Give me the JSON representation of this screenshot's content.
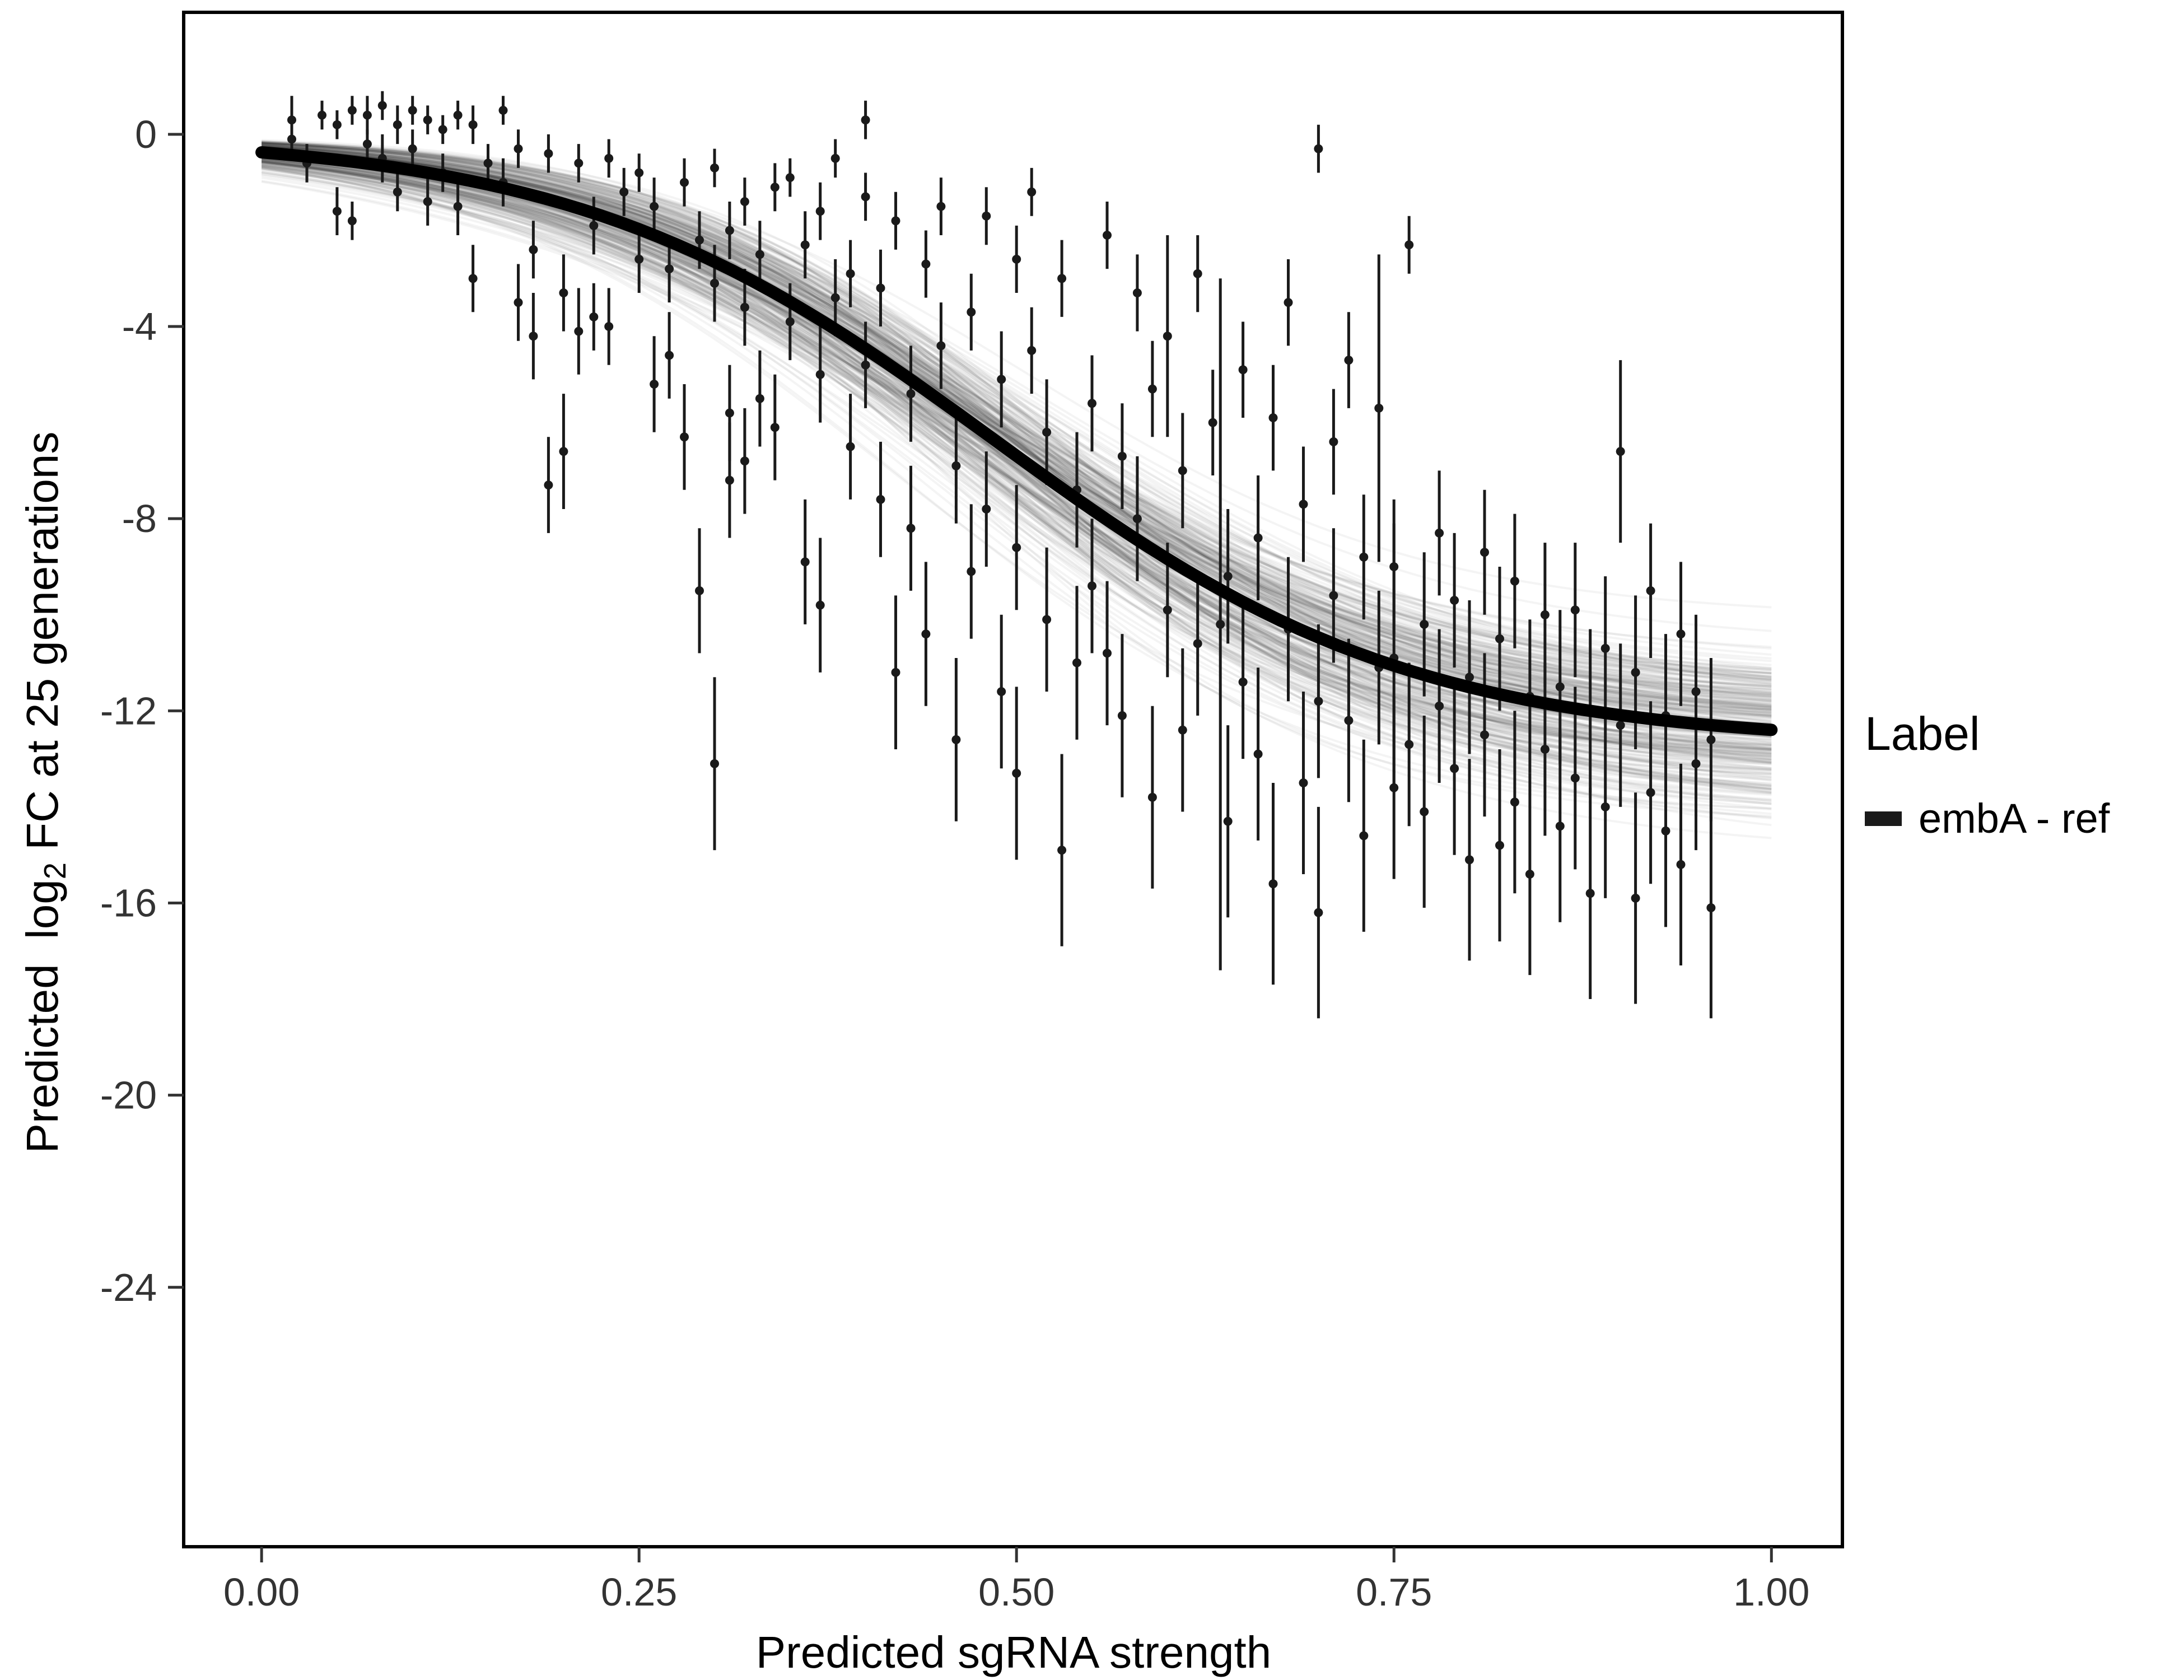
{
  "chart_data": {
    "type": "scatter",
    "title": "",
    "xlabel": "Predicted sgRNA strength",
    "ylabel_parts": [
      "Predicted  log",
      "2",
      " FC at 25 generations"
    ],
    "x_ticks": [
      0,
      0.25,
      0.5,
      0.75,
      1
    ],
    "x_tick_labels": [
      "0.00",
      "0.25",
      "0.50",
      "0.75",
      "1.00"
    ],
    "y_ticks": [
      0,
      -4,
      -8,
      -12,
      -16,
      -20,
      -24
    ],
    "y_tick_labels": [
      "0",
      "-4",
      "-8",
      "-12",
      "-16",
      "-20",
      "-24"
    ],
    "xlim": [
      -0.0516,
      1.047
    ],
    "ylim": [
      -29.4,
      2.54
    ],
    "grid": false,
    "legend": {
      "title": "Label",
      "position": "right",
      "entries": [
        {
          "label": "embA - ref",
          "color": "#1a1a1a"
        }
      ]
    },
    "fit_curve": {
      "model": "logistic",
      "L": 12.7,
      "k": 7.2,
      "x0": 0.485,
      "color": "#000000",
      "x_range": [
        0,
        1
      ]
    },
    "uncertainty_band": {
      "n_draws": 300,
      "sd_L": 0.8,
      "sd_k": 0.8,
      "sd_x0": 0.025,
      "color": "rgba(0,0,0,0.045)"
    },
    "point_color": "#1a1a1a",
    "points": [
      [
        0.02,
        0.3,
        0.5
      ],
      [
        0.02,
        -0.1,
        0.3
      ],
      [
        0.03,
        -0.6,
        0.4
      ],
      [
        0.04,
        0.4,
        0.3
      ],
      [
        0.05,
        -1.6,
        0.5
      ],
      [
        0.05,
        0.2,
        0.3
      ],
      [
        0.06,
        -1.8,
        0.4
      ],
      [
        0.06,
        0.5,
        0.3
      ],
      [
        0.07,
        0.4,
        0.4
      ],
      [
        0.07,
        -0.2,
        0.3
      ],
      [
        0.08,
        0.6,
        0.3
      ],
      [
        0.08,
        -0.5,
        0.5
      ],
      [
        0.09,
        0.2,
        0.4
      ],
      [
        0.09,
        -1.2,
        0.4
      ],
      [
        0.1,
        0.5,
        0.3
      ],
      [
        0.1,
        -0.3,
        0.4
      ],
      [
        0.11,
        -1.4,
        0.5
      ],
      [
        0.11,
        0.3,
        0.3
      ],
      [
        0.12,
        -0.8,
        0.4
      ],
      [
        0.12,
        0.1,
        0.3
      ],
      [
        0.13,
        -1.5,
        0.6
      ],
      [
        0.13,
        0.4,
        0.3
      ],
      [
        0.14,
        -3.0,
        0.7
      ],
      [
        0.14,
        0.2,
        0.4
      ],
      [
        0.15,
        -0.6,
        0.4
      ],
      [
        0.16,
        0.5,
        0.3
      ],
      [
        0.16,
        -1.0,
        0.5
      ],
      [
        0.17,
        -0.3,
        0.4
      ],
      [
        0.17,
        -3.5,
        0.8
      ],
      [
        0.18,
        -2.4,
        0.6
      ],
      [
        0.18,
        -4.2,
        0.9
      ],
      [
        0.19,
        -7.3,
        1.0
      ],
      [
        0.19,
        -0.4,
        0.4
      ],
      [
        0.2,
        -3.3,
        0.8
      ],
      [
        0.2,
        -6.6,
        1.2
      ],
      [
        0.21,
        -4.1,
        0.9
      ],
      [
        0.21,
        -0.6,
        0.4
      ],
      [
        0.22,
        -3.8,
        0.7
      ],
      [
        0.22,
        -1.9,
        0.6
      ],
      [
        0.23,
        -0.5,
        0.4
      ],
      [
        0.23,
        -4.0,
        0.8
      ],
      [
        0.24,
        -1.2,
        0.5
      ],
      [
        0.25,
        -2.6,
        0.7
      ],
      [
        0.25,
        -0.8,
        0.4
      ],
      [
        0.26,
        -1.5,
        0.6
      ],
      [
        0.26,
        -5.2,
        1.0
      ],
      [
        0.27,
        -2.8,
        0.7
      ],
      [
        0.27,
        -4.6,
        0.9
      ],
      [
        0.28,
        -1.0,
        0.5
      ],
      [
        0.28,
        -6.3,
        1.1
      ],
      [
        0.29,
        -2.2,
        0.6
      ],
      [
        0.29,
        -9.5,
        1.3
      ],
      [
        0.3,
        -13.1,
        1.8
      ],
      [
        0.3,
        -3.1,
        0.8
      ],
      [
        0.3,
        -0.7,
        0.4
      ],
      [
        0.31,
        -5.8,
        1.0
      ],
      [
        0.31,
        -2.0,
        0.6
      ],
      [
        0.31,
        -7.2,
        1.2
      ],
      [
        0.32,
        -1.4,
        0.5
      ],
      [
        0.32,
        -6.8,
        1.1
      ],
      [
        0.32,
        -3.6,
        0.8
      ],
      [
        0.33,
        -2.5,
        0.7
      ],
      [
        0.33,
        -5.5,
        1.0
      ],
      [
        0.34,
        -1.1,
        0.5
      ],
      [
        0.34,
        -6.1,
        1.1
      ],
      [
        0.35,
        -3.9,
        0.8
      ],
      [
        0.35,
        -0.9,
        0.4
      ],
      [
        0.36,
        -2.3,
        0.7
      ],
      [
        0.36,
        -8.9,
        1.3
      ],
      [
        0.37,
        -1.6,
        0.6
      ],
      [
        0.37,
        -5.0,
        1.0
      ],
      [
        0.37,
        -9.8,
        1.4
      ],
      [
        0.38,
        -3.4,
        0.8
      ],
      [
        0.38,
        -0.5,
        0.4
      ],
      [
        0.39,
        -6.5,
        1.1
      ],
      [
        0.39,
        -2.9,
        0.7
      ],
      [
        0.4,
        -4.8,
        0.9
      ],
      [
        0.4,
        -1.3,
        0.5
      ],
      [
        0.4,
        0.3,
        0.4
      ],
      [
        0.41,
        -7.6,
        1.2
      ],
      [
        0.41,
        -3.2,
        0.8
      ],
      [
        0.42,
        -11.2,
        1.6
      ],
      [
        0.42,
        -1.8,
        0.6
      ],
      [
        0.43,
        -5.4,
        1.0
      ],
      [
        0.43,
        -8.2,
        1.3
      ],
      [
        0.44,
        -2.7,
        0.7
      ],
      [
        0.44,
        -10.4,
        1.5
      ],
      [
        0.45,
        -4.4,
        0.9
      ],
      [
        0.45,
        -1.5,
        0.6
      ],
      [
        0.46,
        -6.9,
        1.2
      ],
      [
        0.46,
        -12.6,
        1.7
      ],
      [
        0.47,
        -3.7,
        0.8
      ],
      [
        0.47,
        -9.1,
        1.4
      ],
      [
        0.48,
        -1.7,
        0.6
      ],
      [
        0.48,
        -7.8,
        1.2
      ],
      [
        0.49,
        -5.1,
        1.0
      ],
      [
        0.49,
        -11.6,
        1.6
      ],
      [
        0.5,
        -2.6,
        0.7
      ],
      [
        0.5,
        -8.6,
        1.3
      ],
      [
        0.5,
        -13.3,
        1.8
      ],
      [
        0.51,
        -4.5,
        0.9
      ],
      [
        0.51,
        -1.2,
        0.5
      ],
      [
        0.52,
        -6.2,
        1.1
      ],
      [
        0.52,
        -10.1,
        1.5
      ],
      [
        0.53,
        -14.9,
        2.0
      ],
      [
        0.53,
        -3.0,
        0.8
      ],
      [
        0.54,
        -7.4,
        1.2
      ],
      [
        0.54,
        -11.0,
        1.6
      ],
      [
        0.55,
        -5.6,
        1.0
      ],
      [
        0.55,
        -9.4,
        1.4
      ],
      [
        0.56,
        -2.1,
        0.7
      ],
      [
        0.56,
        -10.8,
        1.5
      ],
      [
        0.57,
        -6.7,
        1.1
      ],
      [
        0.57,
        -12.1,
        1.7
      ],
      [
        0.58,
        -3.3,
        0.8
      ],
      [
        0.58,
        -8.0,
        1.3
      ],
      [
        0.59,
        -13.8,
        1.9
      ],
      [
        0.59,
        -5.3,
        1.0
      ],
      [
        0.6,
        -9.9,
        1.4
      ],
      [
        0.6,
        -4.2,
        2.1
      ],
      [
        0.61,
        -12.4,
        1.7
      ],
      [
        0.61,
        -7.0,
        1.2
      ],
      [
        0.62,
        -10.6,
        1.5
      ],
      [
        0.62,
        -2.9,
        0.8
      ],
      [
        0.635,
        -10.2,
        7.2
      ],
      [
        0.63,
        -6.0,
        1.1
      ],
      [
        0.64,
        -9.2,
        1.4
      ],
      [
        0.64,
        -14.3,
        2.0
      ],
      [
        0.65,
        -4.9,
        1.0
      ],
      [
        0.65,
        -11.4,
        1.6
      ],
      [
        0.66,
        -8.4,
        1.3
      ],
      [
        0.66,
        -12.9,
        1.8
      ],
      [
        0.67,
        -5.9,
        1.1
      ],
      [
        0.67,
        -15.6,
        2.1
      ],
      [
        0.68,
        -10.3,
        1.5
      ],
      [
        0.68,
        -3.5,
        0.9
      ],
      [
        0.69,
        -13.5,
        1.9
      ],
      [
        0.69,
        -7.7,
        1.2
      ],
      [
        0.7,
        -0.3,
        0.5
      ],
      [
        0.7,
        -11.8,
        1.6
      ],
      [
        0.7,
        -16.2,
        2.2
      ],
      [
        0.71,
        -6.4,
        1.1
      ],
      [
        0.71,
        -9.6,
        1.4
      ],
      [
        0.72,
        -12.2,
        1.7
      ],
      [
        0.72,
        -4.7,
        1.0
      ],
      [
        0.73,
        -14.6,
        2.0
      ],
      [
        0.73,
        -8.8,
        1.3
      ],
      [
        0.74,
        -11.1,
        1.6
      ],
      [
        0.74,
        -5.7,
        3.2
      ],
      [
        0.75,
        -13.6,
        1.9
      ],
      [
        0.75,
        -9.0,
        1.4
      ],
      [
        0.75,
        -10.9,
        2.8
      ],
      [
        0.76,
        -2.3,
        0.6
      ],
      [
        0.76,
        -12.7,
        1.7
      ],
      [
        0.77,
        -10.2,
        1.5
      ],
      [
        0.77,
        -14.1,
        2.0
      ],
      [
        0.78,
        -8.3,
        1.3
      ],
      [
        0.78,
        -11.9,
        1.6
      ],
      [
        0.79,
        -13.2,
        1.8
      ],
      [
        0.79,
        -9.7,
        1.4
      ],
      [
        0.8,
        -15.1,
        2.1
      ],
      [
        0.8,
        -11.3,
        1.6
      ],
      [
        0.81,
        -8.7,
        1.3
      ],
      [
        0.81,
        -12.5,
        1.7
      ],
      [
        0.82,
        -14.8,
        2.0
      ],
      [
        0.82,
        -10.5,
        1.5
      ],
      [
        0.83,
        -9.3,
        1.4
      ],
      [
        0.83,
        -13.9,
        1.9
      ],
      [
        0.84,
        -11.7,
        1.6
      ],
      [
        0.84,
        -15.4,
        2.1
      ],
      [
        0.85,
        -10.0,
        1.5
      ],
      [
        0.85,
        -12.8,
        1.8
      ],
      [
        0.86,
        -14.4,
        2.0
      ],
      [
        0.86,
        -11.5,
        1.6
      ],
      [
        0.87,
        -13.4,
        1.9
      ],
      [
        0.87,
        -9.9,
        1.4
      ],
      [
        0.88,
        -15.8,
        2.2
      ],
      [
        0.88,
        -12.0,
        1.7
      ],
      [
        0.89,
        -10.7,
        1.5
      ],
      [
        0.89,
        -14.0,
        1.9
      ],
      [
        0.9,
        -6.6,
        1.9
      ],
      [
        0.9,
        -12.3,
        1.7
      ],
      [
        0.91,
        -15.9,
        2.2
      ],
      [
        0.91,
        -11.2,
        1.6
      ],
      [
        0.92,
        -13.7,
        1.9
      ],
      [
        0.92,
        -9.5,
        1.4
      ],
      [
        0.93,
        -14.5,
        2.0
      ],
      [
        0.93,
        -12.1,
        1.7
      ],
      [
        0.94,
        -10.4,
        1.5
      ],
      [
        0.94,
        -15.2,
        2.1
      ],
      [
        0.95,
        -11.6,
        1.6
      ],
      [
        0.95,
        -13.1,
        1.8
      ],
      [
        0.96,
        -16.1,
        2.3
      ],
      [
        0.96,
        -12.6,
        1.7
      ]
    ]
  },
  "colors": {
    "background": "#ffffff",
    "axis_text": "#333333",
    "axis_line": "#000000",
    "point": "#1a1a1a",
    "curve": "#000000"
  }
}
